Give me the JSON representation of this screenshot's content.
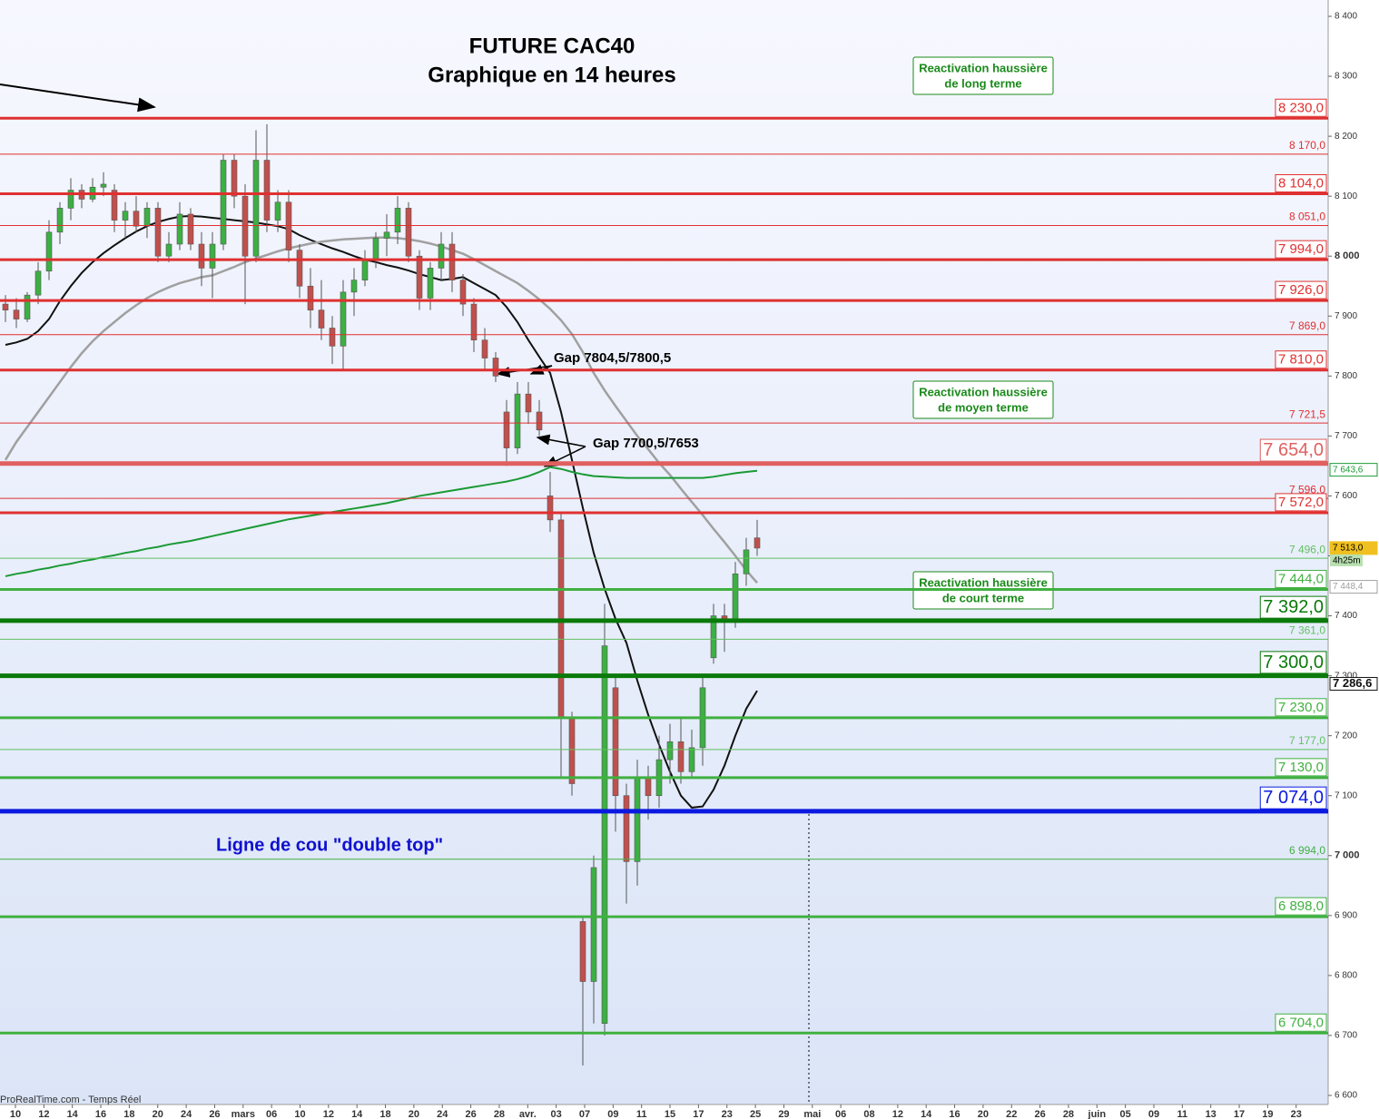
{
  "chart_data": {
    "type": "candlestick",
    "title": "FUTURE CAC40",
    "subtitle": "Graphique en 14 heures",
    "source": "ProRealTime.com - Temps Réel",
    "ylim": [
      6600,
      8400
    ],
    "yticks": [
      {
        "value": 8400,
        "label": "8 400"
      },
      {
        "value": 8300,
        "label": "8 300"
      },
      {
        "value": 8200,
        "label": "8 200"
      },
      {
        "value": 8100,
        "label": "8 100"
      },
      {
        "value": 8000,
        "label": "8 000"
      },
      {
        "value": 7900,
        "label": "7 900"
      },
      {
        "value": 7800,
        "label": "7 800"
      },
      {
        "value": 7700,
        "label": "7 700"
      },
      {
        "value": 7600,
        "label": "7 600"
      },
      {
        "value": 7500,
        "label": "7 500"
      },
      {
        "value": 7400,
        "label": "7 400"
      },
      {
        "value": 7300,
        "label": "7 300"
      },
      {
        "value": 7200,
        "label": "7 200"
      },
      {
        "value": 7100,
        "label": "7 100"
      },
      {
        "value": 7000,
        "label": "7 000"
      },
      {
        "value": 6900,
        "label": "6 900"
      },
      {
        "value": 6800,
        "label": "6 800"
      },
      {
        "value": 6700,
        "label": "6 700"
      },
      {
        "value": 6600,
        "label": "6 600"
      }
    ],
    "x_labels": [
      "10",
      "12",
      "14",
      "16",
      "18",
      "20",
      "24",
      "26",
      "mars",
      "06",
      "10",
      "12",
      "14",
      "18",
      "20",
      "24",
      "26",
      "28",
      "avr.",
      "03",
      "07",
      "09",
      "11",
      "15",
      "17",
      "23",
      "25",
      "29",
      "mai",
      "06",
      "08",
      "12",
      "14",
      "16",
      "20",
      "22",
      "26",
      "28",
      "juin",
      "05",
      "09",
      "11",
      "13",
      "17",
      "19",
      "23"
    ],
    "candles": [
      [
        7920,
        7935,
        7890,
        7910
      ],
      [
        7910,
        7930,
        7880,
        7895
      ],
      [
        7895,
        7940,
        7890,
        7935
      ],
      [
        7935,
        7990,
        7920,
        7975
      ],
      [
        7975,
        8060,
        7960,
        8040
      ],
      [
        8040,
        8090,
        8020,
        8080
      ],
      [
        8080,
        8130,
        8060,
        8110
      ],
      [
        8110,
        8120,
        8080,
        8095
      ],
      [
        8095,
        8130,
        8090,
        8115
      ],
      [
        8115,
        8140,
        8100,
        8120
      ],
      [
        8110,
        8120,
        8040,
        8060
      ],
      [
        8060,
        8090,
        8030,
        8075
      ],
      [
        8075,
        8100,
        8040,
        8050
      ],
      [
        8050,
        8090,
        8030,
        8080
      ],
      [
        8080,
        8090,
        7990,
        8000
      ],
      [
        8000,
        8040,
        7990,
        8020
      ],
      [
        8020,
        8090,
        8010,
        8070
      ],
      [
        8070,
        8080,
        8010,
        8020
      ],
      [
        8020,
        8040,
        7950,
        7980
      ],
      [
        7980,
        8040,
        7930,
        8020
      ],
      [
        8020,
        8170,
        8010,
        8160
      ],
      [
        8160,
        8170,
        8080,
        8100
      ],
      [
        8100,
        8120,
        7920,
        8000
      ],
      [
        8000,
        8210,
        7990,
        8160
      ],
      [
        8160,
        8220,
        8040,
        8060
      ],
      [
        8060,
        8110,
        8040,
        8090
      ],
      [
        8090,
        8110,
        7990,
        8010
      ],
      [
        8010,
        8020,
        7930,
        7950
      ],
      [
        7950,
        7980,
        7880,
        7910
      ],
      [
        7910,
        7960,
        7860,
        7880
      ],
      [
        7880,
        7900,
        7820,
        7850
      ],
      [
        7850,
        7960,
        7810,
        7940
      ],
      [
        7940,
        7980,
        7900,
        7960
      ],
      [
        7960,
        8010,
        7950,
        7995
      ],
      [
        7995,
        8040,
        7980,
        8030
      ],
      [
        8030,
        8070,
        8000,
        8040
      ],
      [
        8040,
        8100,
        8020,
        8080
      ],
      [
        8080,
        8090,
        7990,
        8000
      ],
      [
        8000,
        8010,
        7910,
        7930
      ],
      [
        7930,
        7990,
        7910,
        7980
      ],
      [
        7980,
        8040,
        7960,
        8020
      ],
      [
        8020,
        8040,
        7940,
        7960
      ],
      [
        7960,
        7970,
        7900,
        7920
      ],
      [
        7920,
        7930,
        7840,
        7860
      ],
      [
        7860,
        7880,
        7810,
        7830
      ],
      [
        7830,
        7840,
        7790,
        7800
      ],
      [
        7740,
        7760,
        7650,
        7680
      ],
      [
        7680,
        7790,
        7670,
        7770
      ],
      [
        7770,
        7790,
        7720,
        7740
      ],
      [
        7740,
        7760,
        7700,
        7710
      ],
      [
        7600,
        7640,
        7540,
        7560
      ],
      [
        7560,
        7570,
        7130,
        7230
      ],
      [
        7230,
        7240,
        7100,
        7120
      ],
      [
        6890,
        6900,
        6650,
        6790
      ],
      [
        6790,
        7000,
        6720,
        6980
      ],
      [
        6720,
        7420,
        6700,
        7350
      ],
      [
        7280,
        7300,
        7040,
        7100
      ],
      [
        7100,
        7120,
        6920,
        6990
      ],
      [
        6990,
        7160,
        6950,
        7130
      ],
      [
        7130,
        7150,
        7060,
        7100
      ],
      [
        7100,
        7200,
        7080,
        7160
      ],
      [
        7160,
        7220,
        7120,
        7190
      ],
      [
        7190,
        7230,
        7120,
        7140
      ],
      [
        7140,
        7210,
        7130,
        7180
      ],
      [
        7180,
        7300,
        7150,
        7280
      ],
      [
        7330,
        7420,
        7320,
        7400
      ],
      [
        7400,
        7420,
        7340,
        7390
      ],
      [
        7390,
        7490,
        7380,
        7470
      ],
      [
        7470,
        7530,
        7450,
        7510
      ],
      [
        7530,
        7560,
        7500,
        7513
      ]
    ],
    "up_color": "#3cb043",
    "down_color": "#c0504d",
    "series": [
      {
        "color": "#111111",
        "values": [
          7852,
          7856,
          7862,
          7875,
          7895,
          7925,
          7950,
          7972,
          7990,
          8005,
          8018,
          8030,
          8041,
          8050,
          8057,
          8062,
          8066,
          8067,
          8066,
          8064,
          8062,
          8060,
          8058,
          8056,
          8053,
          8050,
          8045,
          8035,
          8027,
          8020,
          8013,
          8007,
          8000,
          7994,
          7990,
          7985,
          7981,
          7976,
          7970,
          7965,
          7960,
          7962,
          7965,
          7955,
          7945,
          7935,
          7915,
          7890,
          7860,
          7832,
          7805,
          7740,
          7660,
          7580,
          7505,
          7445,
          7395,
          7355,
          7292,
          7235,
          7185,
          7140,
          7100,
          7080,
          7082,
          7110,
          7150,
          7200,
          7245,
          7275
        ]
      },
      {
        "color": "#a0a0a0",
        "values": [
          7660,
          7690,
          7715,
          7740,
          7765,
          7790,
          7815,
          7838,
          7858,
          7875,
          7890,
          7905,
          7918,
          7930,
          7940,
          7948,
          7955,
          7960,
          7965,
          7968,
          7975,
          7982,
          7990,
          7996,
          8002,
          8008,
          8013,
          8017,
          8021,
          8024,
          8026,
          8028,
          8029,
          8030,
          8031,
          8031,
          8030,
          8028,
          8025,
          8021,
          8016,
          8010,
          8004,
          7995,
          7985,
          7975,
          7965,
          7955,
          7942,
          7928,
          7912,
          7893,
          7870,
          7840,
          7805,
          7776,
          7750,
          7725,
          7700,
          7678,
          7655,
          7635,
          7612,
          7590,
          7568,
          7545,
          7523,
          7500,
          7476,
          7455
        ]
      },
      {
        "color": "#1a9a35",
        "values": [
          7466,
          7470,
          7473,
          7477,
          7480,
          7484,
          7487,
          7491,
          7494,
          7498,
          7501,
          7505,
          7508,
          7512,
          7515,
          7519,
          7522,
          7525,
          7529,
          7533,
          7537,
          7541,
          7545,
          7549,
          7553,
          7557,
          7561,
          7564,
          7567,
          7570,
          7573,
          7576,
          7579,
          7582,
          7585,
          7588,
          7592,
          7596,
          7600,
          7603,
          7606,
          7609,
          7612,
          7615,
          7618,
          7621,
          7624,
          7628,
          7633,
          7640,
          7648,
          7645,
          7640,
          7636,
          7633,
          7632,
          7631,
          7630,
          7630,
          7630,
          7630,
          7630,
          7630,
          7630,
          7630,
          7632,
          7635,
          7638,
          7640,
          7642
        ]
      }
    ],
    "levels": [
      {
        "value": 8230,
        "label": "8 230,0",
        "style": "box",
        "color": "#e03030"
      },
      {
        "value": 8170,
        "label": "8 170,0",
        "style": "small",
        "color": "#e03030"
      },
      {
        "value": 8104,
        "label": "8 104,0",
        "style": "box",
        "color": "#e03030"
      },
      {
        "value": 8051,
        "label": "8 051,0",
        "style": "small",
        "color": "#e03030"
      },
      {
        "value": 7994,
        "label": "7 994,0",
        "style": "box",
        "color": "#e03030"
      },
      {
        "value": 7926,
        "label": "7 926,0",
        "style": "box",
        "color": "#e03030"
      },
      {
        "value": 7869,
        "label": "7 869,0",
        "style": "small",
        "color": "#e03030"
      },
      {
        "value": 7810,
        "label": "7 810,0",
        "style": "box",
        "color": "#e03030"
      },
      {
        "value": 7721.5,
        "label": "7 721,5",
        "style": "small",
        "color": "#e03030"
      },
      {
        "value": 7654,
        "label": "7 654,0",
        "style": "big",
        "color": "#e06060"
      },
      {
        "value": 7596,
        "label": "7 596,0",
        "style": "small",
        "color": "#e03030"
      },
      {
        "value": 7572,
        "label": "7 572,0",
        "style": "box",
        "color": "#e03030"
      },
      {
        "value": 7496,
        "label": "7 496,0",
        "style": "small",
        "color": "#60c060"
      },
      {
        "value": 7444,
        "label": "7 444,0",
        "style": "box",
        "color": "#40b040"
      },
      {
        "value": 7392,
        "label": "7 392,0",
        "style": "big",
        "color": "#0a7a0a"
      },
      {
        "value": 7361,
        "label": "7 361,0",
        "style": "small",
        "color": "#60c060"
      },
      {
        "value": 7300,
        "label": "7 300,0",
        "style": "big",
        "color": "#0a7a0a"
      },
      {
        "value": 7230,
        "label": "7 230,0",
        "style": "box",
        "color": "#40b040"
      },
      {
        "value": 7177,
        "label": "7 177,0",
        "style": "small",
        "color": "#60c060"
      },
      {
        "value": 7130,
        "label": "7 130,0",
        "style": "box",
        "color": "#40b040"
      },
      {
        "value": 7074,
        "label": "7 074,0",
        "style": "big",
        "color": "#0a1ae0"
      },
      {
        "value": 6994,
        "label": "6 994,0",
        "style": "small",
        "color": "#40b040"
      },
      {
        "value": 6898,
        "label": "6 898,0",
        "style": "box",
        "color": "#40b040"
      },
      {
        "value": 6704,
        "label": "6 704,0",
        "style": "box",
        "color": "#40b040"
      }
    ],
    "price_tags": [
      {
        "value": 7643.6,
        "label": "7 643,6",
        "color": "#1a9a35"
      },
      {
        "value": 7513,
        "label": "7 513,0",
        "sub": "4h25m",
        "color": "#f0c020"
      },
      {
        "value": 7448.4,
        "label": "7 448,4",
        "color": "#a0a0a0"
      },
      {
        "value": 7286.6,
        "label": "7 286,6",
        "color": "#111111"
      }
    ],
    "annotations": {
      "long": [
        "Reactivation haussière",
        "de long terme"
      ],
      "medium": [
        "Reactivation haussière",
        "de moyen terme"
      ],
      "short": [
        "Reactivation haussière",
        "de court terme"
      ],
      "gap1": "Gap 7804,5/7800,5",
      "gap2": "Gap 7700,5/7653",
      "neckline": "Ligne de cou \"double top\""
    }
  }
}
